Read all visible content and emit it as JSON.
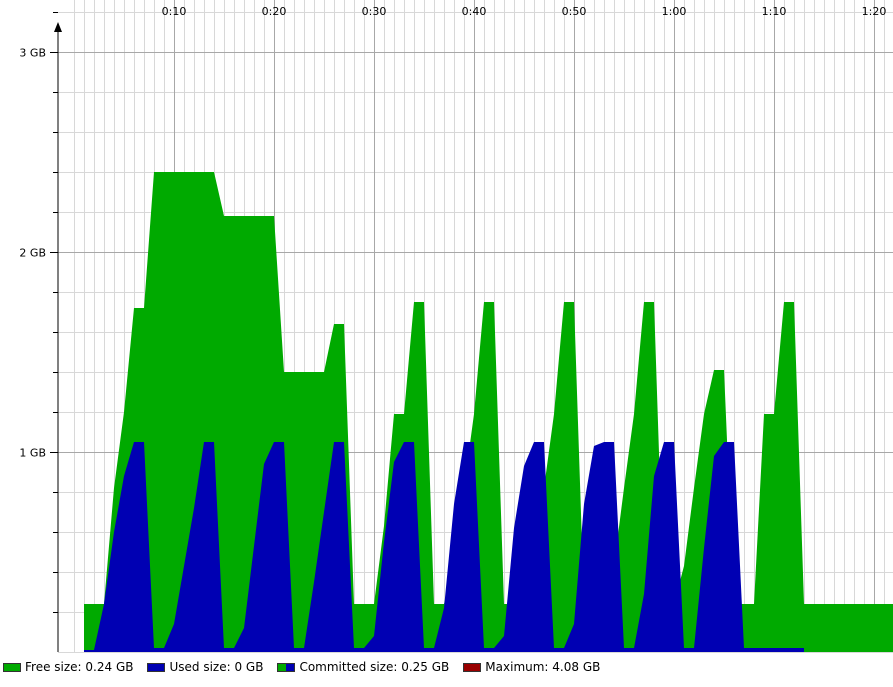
{
  "chart_data": {
    "type": "area",
    "x_unit": "minutes",
    "xlim": [
      0,
      85
    ],
    "ylim": [
      0,
      3.25
    ],
    "x_ticks": [
      {
        "value": 10,
        "label": "0:10"
      },
      {
        "value": 20,
        "label": "0:20"
      },
      {
        "value": 30,
        "label": "0:30"
      },
      {
        "value": 40,
        "label": "0:40"
      },
      {
        "value": 50,
        "label": "0:50"
      },
      {
        "value": 60,
        "label": "1:00"
      },
      {
        "value": 70,
        "label": "1:10"
      },
      {
        "value": 80,
        "label": "1:20"
      }
    ],
    "y_ticks": [
      {
        "value": 1,
        "label": "1 GB"
      },
      {
        "value": 2,
        "label": "2 GB"
      },
      {
        "value": 3,
        "label": "3 GB"
      }
    ],
    "grid": true,
    "legend_position": "bottom",
    "series": [
      {
        "name": "Free size",
        "color": "#00aa00",
        "x": [
          1,
          3,
          4,
          5,
          6,
          7,
          8,
          9,
          12,
          14,
          15,
          20,
          21,
          22,
          25,
          26,
          27,
          28,
          30,
          31,
          32,
          33,
          34,
          35,
          36,
          37,
          38,
          39,
          40,
          41,
          42,
          43,
          45,
          46,
          47,
          48,
          49,
          50,
          51,
          53,
          54,
          55,
          56,
          57,
          58,
          59,
          60,
          61,
          62,
          63,
          64,
          65,
          66,
          67,
          68,
          69,
          70,
          71,
          72,
          73,
          74,
          85
        ],
        "y": [
          0.24,
          0.24,
          0.82,
          1.2,
          1.72,
          1.72,
          2.4,
          2.4,
          2.4,
          2.4,
          2.18,
          2.18,
          1.4,
          1.4,
          1.4,
          1.64,
          1.64,
          0.24,
          0.24,
          0.63,
          1.19,
          1.19,
          1.75,
          1.75,
          0.24,
          0.24,
          0.43,
          0.82,
          1.19,
          1.75,
          1.75,
          0.24,
          0.24,
          0.63,
          0.82,
          1.19,
          1.75,
          1.75,
          0.24,
          0.24,
          0.43,
          0.82,
          1.19,
          1.75,
          1.75,
          0.24,
          0.24,
          0.43,
          0.82,
          1.19,
          1.41,
          1.41,
          0.24,
          0.24,
          0.24,
          1.19,
          1.19,
          1.75,
          1.75,
          0.24,
          0.24,
          0.24
        ]
      },
      {
        "name": "Used size",
        "color": "#0000b3",
        "x": [
          1,
          2,
          3,
          4,
          5,
          6,
          7,
          8,
          9,
          10,
          12,
          13,
          14,
          15,
          16,
          17,
          19,
          20,
          21,
          22,
          23,
          24,
          26,
          27,
          28,
          29,
          30,
          31,
          32,
          33,
          34,
          35,
          36,
          37,
          38,
          39,
          40,
          41,
          42,
          43,
          44,
          45,
          46,
          47,
          48,
          49,
          50,
          51,
          52,
          53,
          54,
          55,
          56,
          57,
          58,
          59,
          60,
          61,
          62,
          63,
          64,
          65,
          66,
          67,
          68,
          69,
          70,
          71,
          72,
          73
        ],
        "y": [
          0.01,
          0.01,
          0.24,
          0.6,
          0.88,
          1.05,
          1.05,
          0.02,
          0.02,
          0.14,
          0.72,
          1.05,
          1.05,
          0.02,
          0.02,
          0.12,
          0.94,
          1.05,
          1.05,
          0.02,
          0.02,
          0.35,
          1.05,
          1.05,
          0.02,
          0.02,
          0.08,
          0.55,
          0.95,
          1.05,
          1.05,
          0.02,
          0.02,
          0.22,
          0.74,
          1.05,
          1.05,
          0.02,
          0.02,
          0.08,
          0.62,
          0.93,
          1.05,
          1.05,
          0.02,
          0.02,
          0.14,
          0.74,
          1.03,
          1.05,
          1.05,
          0.02,
          0.02,
          0.29,
          0.88,
          1.05,
          1.05,
          0.02,
          0.02,
          0.52,
          0.98,
          1.05,
          1.05,
          0.02,
          0.02,
          0.02,
          0.02,
          0.02,
          0.02,
          0.02
        ]
      }
    ]
  },
  "legend": [
    {
      "label": "Free size: 0.24 GB",
      "color": "#00aa00",
      "color2": ""
    },
    {
      "label": "Used size: 0 GB",
      "color": "#0000b3",
      "color2": ""
    },
    {
      "label": "Committed size: 0.25 GB",
      "color": "#0000b3",
      "color2": "#00aa00"
    },
    {
      "label": "Maximum: 4.08 GB",
      "color": "#990000",
      "color2": ""
    }
  ]
}
